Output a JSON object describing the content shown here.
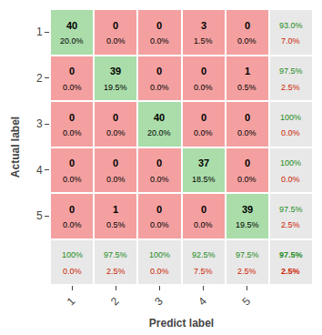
{
  "chart_data": {
    "type": "heatmap",
    "xlabel": "Predict label",
    "ylabel": "Actual label",
    "categories": [
      "1",
      "2",
      "3",
      "4",
      "5"
    ],
    "cells": [
      [
        40,
        0,
        0,
        3,
        0
      ],
      [
        0,
        39,
        0,
        0,
        1
      ],
      [
        0,
        0,
        40,
        0,
        0
      ],
      [
        0,
        0,
        0,
        37,
        0
      ],
      [
        0,
        1,
        0,
        0,
        39
      ]
    ],
    "cell_labels": [
      [
        "20.0%",
        "0.0%",
        "0.0%",
        "1.5%",
        "0.0%"
      ],
      [
        "0.0%",
        "19.5%",
        "0.0%",
        "0.0%",
        "0.5%"
      ],
      [
        "0.0%",
        "0.0%",
        "20.0%",
        "0.0%",
        "0.0%"
      ],
      [
        "0.0%",
        "0.0%",
        "0.0%",
        "18.5%",
        "0.0%"
      ],
      [
        "0.0%",
        "0.5%",
        "0.0%",
        "0.0%",
        "19.5%"
      ]
    ],
    "row_recall": [
      "93.0%",
      "97.5%",
      "100%",
      "100%",
      "97.5%"
    ],
    "row_miss": [
      "7.0%",
      "2.5%",
      "0.0%",
      "0.0%",
      "2.5%"
    ],
    "col_precision": [
      "100%",
      "97.5%",
      "100%",
      "92.5%",
      "97.5%"
    ],
    "col_miss": [
      "0.0%",
      "2.5%",
      "0.0%",
      "7.5%",
      "2.5%"
    ],
    "overall_correct": "97.5%",
    "overall_miss": "2.5%",
    "colors": {
      "diagonal": "#aaddaa",
      "off_diagonal": "#f4a0a0",
      "summary": "#e8e8e8",
      "correct_text": "#228B22",
      "miss_text": "#CC2200"
    },
    "grid": false
  }
}
